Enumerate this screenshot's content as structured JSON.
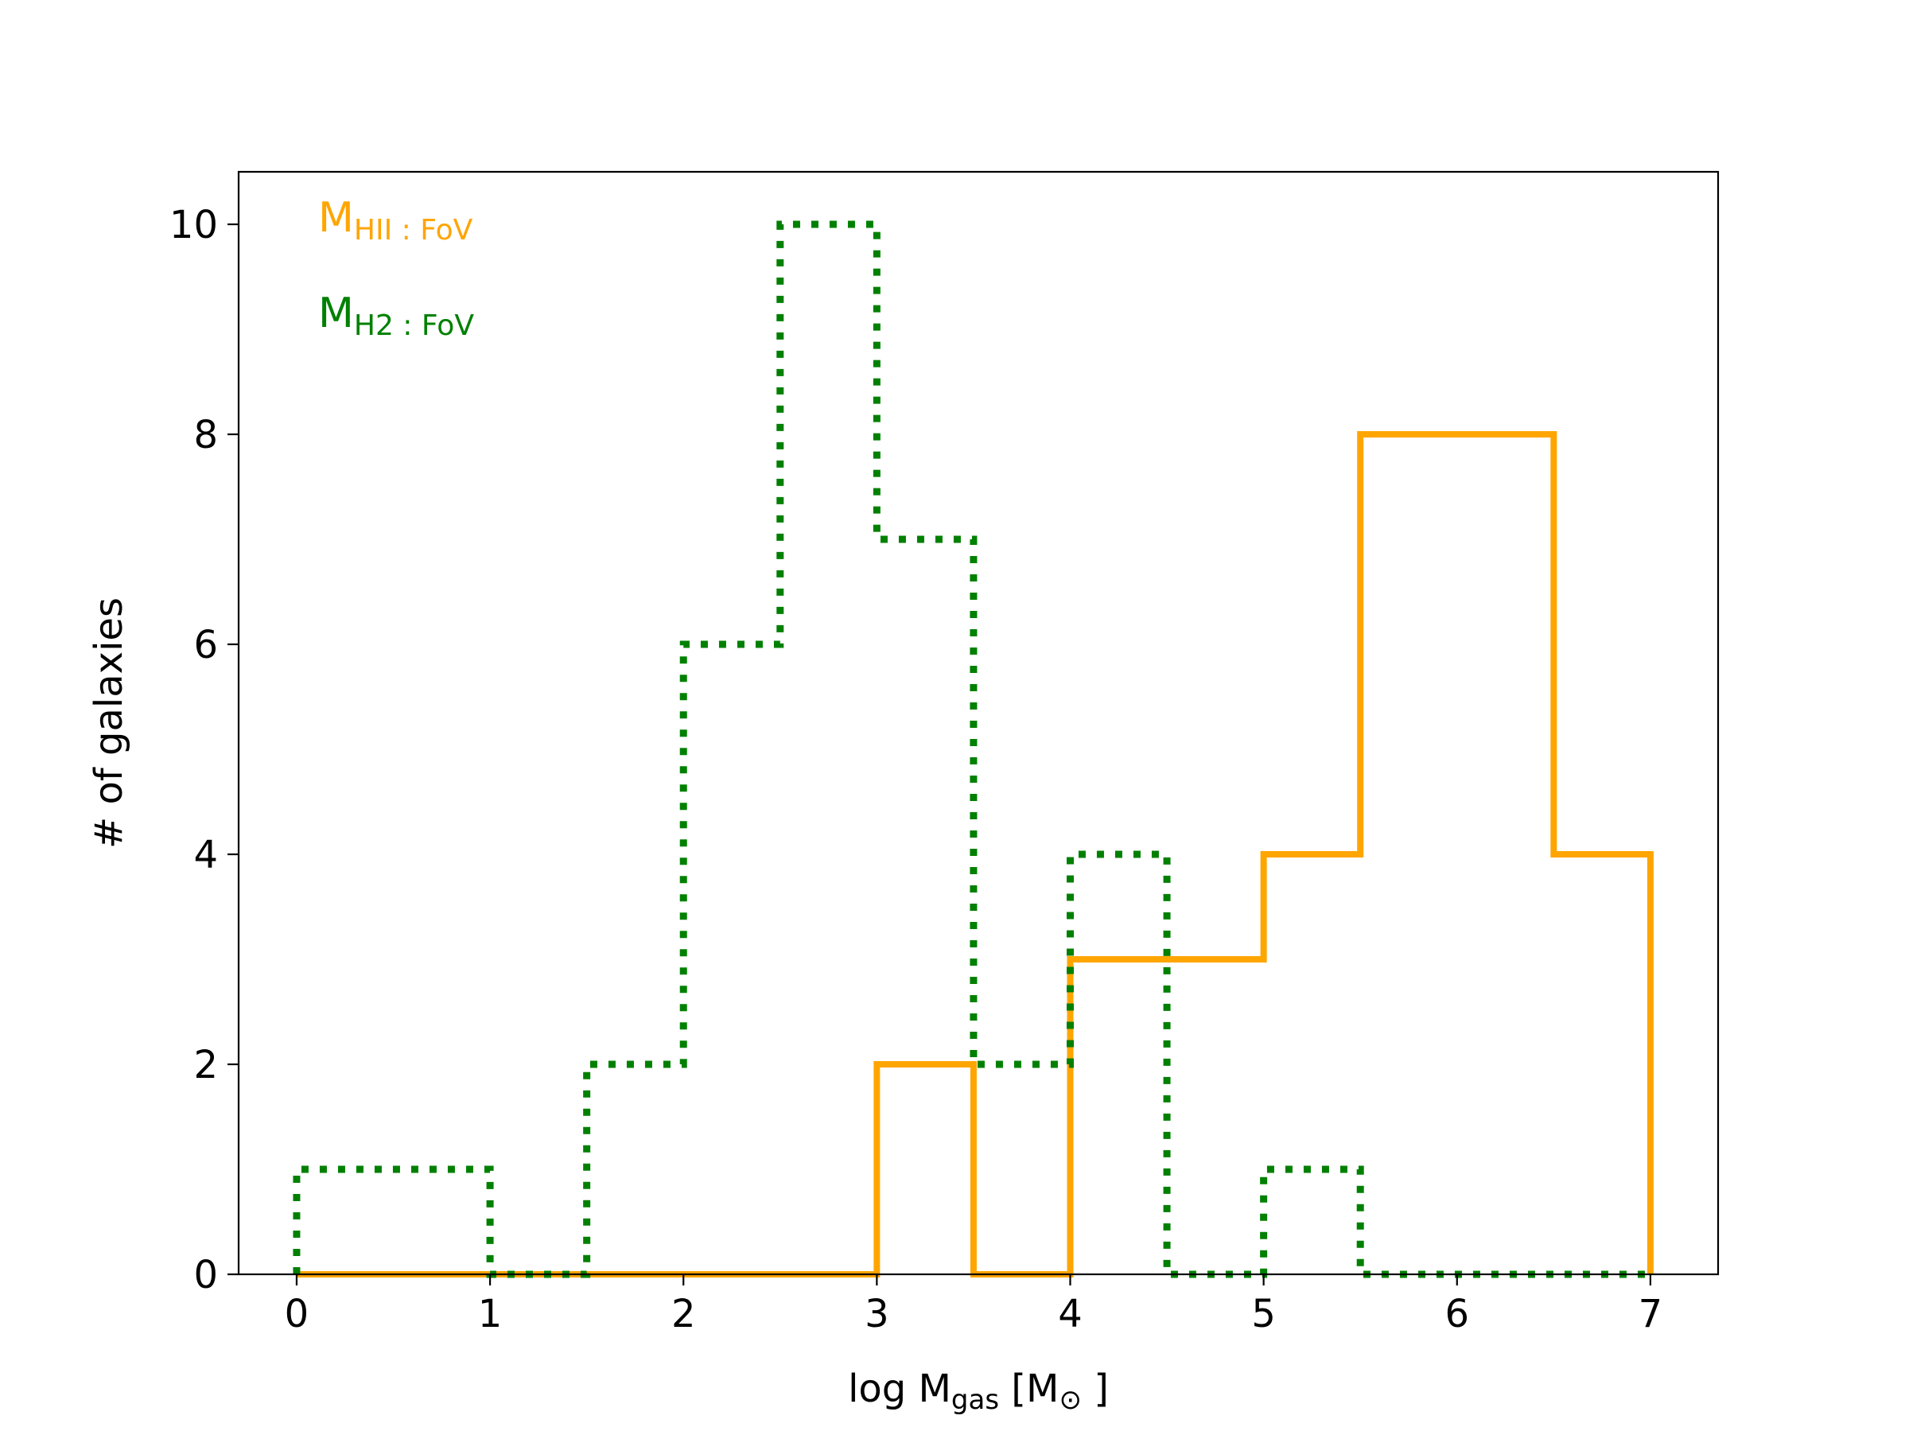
{
  "chart_data": {
    "type": "histogram-step",
    "xlabel": {
      "main": "log M",
      "sub": "gas",
      "unit_open": " [M",
      "unit_symbol": "⊙",
      "unit_close": " ]"
    },
    "ylabel": "# of galaxies",
    "xlim": [
      -0.3,
      7.35
    ],
    "ylim": [
      0,
      10.5
    ],
    "xticks": [
      0,
      1,
      2,
      3,
      4,
      5,
      6,
      7
    ],
    "yticks": [
      0,
      2,
      4,
      6,
      8,
      10
    ],
    "legend_position": "top-left",
    "bin_edges": [
      0,
      0.5,
      1,
      1.5,
      2,
      2.5,
      3,
      3.5,
      4,
      4.5,
      5,
      5.5,
      6,
      6.5,
      7
    ],
    "series": [
      {
        "name_main": "M",
        "name_sub": "HII : FoV",
        "color": "#ffa500",
        "style": "solid",
        "counts": [
          0,
          0,
          0,
          0,
          0,
          0,
          2,
          0,
          3,
          3,
          4,
          8,
          8,
          4
        ]
      },
      {
        "name_main": "M",
        "name_sub": "H2 : FoV",
        "color": "#008000",
        "style": "dotted",
        "counts": [
          1,
          1,
          0,
          2,
          6,
          10,
          7,
          2,
          4,
          0,
          1,
          0,
          0,
          0
        ]
      }
    ]
  }
}
